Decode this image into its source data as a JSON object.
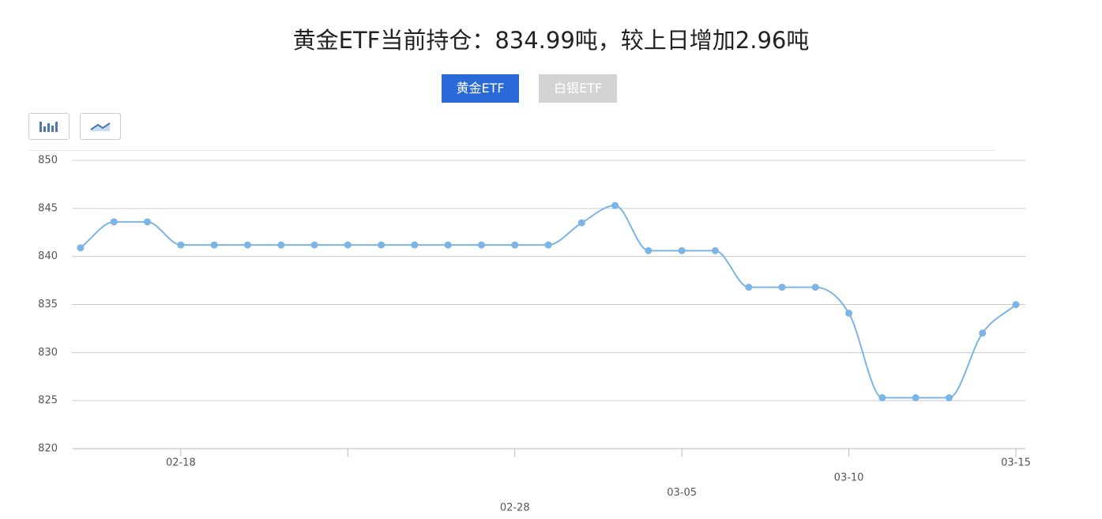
{
  "tabs": [
    "黄金ETF",
    "白银ETF"
  ],
  "chart_data": {
    "type": "line",
    "title": "黄金ETF当前持仓：834.99吨，较上日增加2.96吨",
    "categories": [
      null,
      null,
      null,
      "02-18",
      null,
      null,
      null,
      null,
      null,
      null,
      null,
      null,
      null,
      "02-28",
      null,
      null,
      null,
      null,
      "03-05",
      null,
      null,
      null,
      null,
      "03-10",
      null,
      null,
      null,
      null,
      "03-15"
    ],
    "series": [
      {
        "name": "黄金ETF",
        "color": "#7cb4e6",
        "values": [
          840.9,
          843.6,
          843.6,
          841.2,
          841.2,
          841.2,
          841.2,
          841.2,
          841.2,
          841.2,
          841.2,
          841.2,
          841.2,
          841.2,
          841.2,
          843.5,
          845.3,
          840.6,
          840.6,
          840.6,
          836.8,
          836.8,
          836.8,
          834.1,
          825.3,
          825.3,
          825.3,
          832.03,
          834.99
        ]
      }
    ],
    "ylim": [
      820,
      850
    ],
    "yticks": [
      820,
      825,
      830,
      835,
      840,
      845,
      850
    ],
    "grid": true
  }
}
